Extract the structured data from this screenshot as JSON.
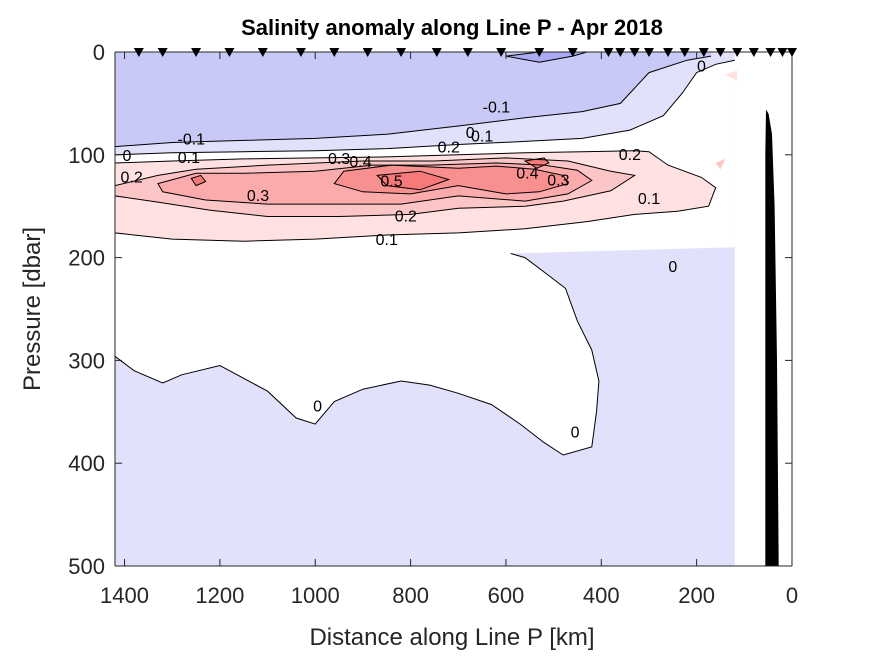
{
  "chart_data": {
    "type": "heatmap",
    "subtype": "filled-contour-section",
    "title": "Salinity anomaly along Line P - Apr 2018",
    "xlabel": "Distance along Line P [km]",
    "ylabel": "Pressure [dbar]",
    "xlim": [
      1420,
      0
    ],
    "ylim": [
      0,
      500
    ],
    "x_reversed": true,
    "y_reversed": true,
    "xticks": [
      1400,
      1200,
      1000,
      800,
      600,
      400,
      200,
      0
    ],
    "yticks": [
      0,
      100,
      200,
      300,
      400,
      500
    ],
    "grid": false,
    "station_markers_km": [
      1370,
      1320,
      1250,
      1180,
      1110,
      1030,
      960,
      890,
      820,
      745,
      680,
      610,
      530,
      460,
      385,
      360,
      330,
      300,
      260,
      225,
      185,
      150,
      115,
      80,
      45,
      20,
      0
    ],
    "contour_levels": [
      -0.2,
      -0.1,
      0,
      0.1,
      0.2,
      0.3,
      0.4,
      0.5
    ],
    "fill_colors": {
      "-0.2": "#ababf5",
      "-0.1": "#c9c9f7",
      "0": "#e1e1fb",
      "0.0+": "#ffffff",
      "0.1": "#ffe1e1",
      "0.2": "#fdc6c6",
      "0.3": "#fbabab",
      "0.4": "#f99090",
      "0.5": "#f77a7a"
    },
    "bathymetry_color": "#000000",
    "contours": [
      {
        "level": -0.2,
        "points": [
          [
            530,
            0
          ],
          [
            600,
            4
          ],
          [
            530,
            10
          ],
          [
            460,
            4
          ],
          [
            430,
            0
          ]
        ]
      },
      {
        "level": -0.1,
        "points": [
          [
            1420,
            92
          ],
          [
            1300,
            88
          ],
          [
            1150,
            86
          ],
          [
            1000,
            84
          ],
          [
            850,
            80
          ],
          [
            700,
            72
          ],
          [
            560,
            64
          ],
          [
            440,
            58
          ],
          [
            360,
            50
          ],
          [
            300,
            20
          ],
          [
            220,
            8
          ],
          [
            170,
            4
          ]
        ]
      },
      {
        "level": 0,
        "points": [
          [
            1420,
            100
          ],
          [
            1300,
            98
          ],
          [
            1150,
            97
          ],
          [
            1000,
            96
          ],
          [
            850,
            94
          ],
          [
            700,
            90
          ],
          [
            560,
            87
          ],
          [
            440,
            84
          ],
          [
            340,
            76
          ],
          [
            270,
            62
          ],
          [
            230,
            40
          ],
          [
            200,
            20
          ],
          [
            160,
            12
          ],
          [
            120,
            8
          ]
        ]
      },
      {
        "level": 0.1,
        "points": [
          [
            1420,
            108
          ],
          [
            1300,
            106
          ],
          [
            1150,
            104
          ],
          [
            1000,
            103
          ],
          [
            850,
            102
          ],
          [
            700,
            100
          ],
          [
            560,
            98
          ],
          [
            440,
            97
          ],
          [
            330,
            96
          ],
          [
            300,
            97
          ],
          [
            260,
            110
          ],
          [
            190,
            122
          ],
          [
            160,
            132
          ],
          [
            175,
            150
          ],
          [
            240,
            155
          ],
          [
            330,
            158
          ],
          [
            430,
            165
          ],
          [
            560,
            172
          ],
          [
            700,
            176
          ],
          [
            850,
            178
          ],
          [
            1000,
            182
          ],
          [
            1150,
            184
          ],
          [
            1300,
            182
          ],
          [
            1420,
            176
          ]
        ]
      },
      {
        "level": 0.2,
        "points": [
          [
            1420,
            130
          ],
          [
            1330,
            120
          ],
          [
            1250,
            114
          ],
          [
            1100,
            110
          ],
          [
            900,
            106
          ],
          [
            750,
            106
          ],
          [
            600,
            103
          ],
          [
            470,
            106
          ],
          [
            380,
            116
          ],
          [
            330,
            120
          ],
          [
            380,
            135
          ],
          [
            480,
            145
          ],
          [
            560,
            150
          ],
          [
            700,
            152
          ],
          [
            800,
            158
          ],
          [
            950,
            160
          ],
          [
            1100,
            160
          ],
          [
            1220,
            154
          ],
          [
            1330,
            146
          ],
          [
            1420,
            140
          ]
        ]
      },
      {
        "level": 0.3,
        "points": [
          [
            1330,
            128
          ],
          [
            1250,
            118
          ],
          [
            1150,
            118
          ],
          [
            1000,
            116
          ],
          [
            880,
            110
          ],
          [
            760,
            110
          ],
          [
            620,
            108
          ],
          [
            520,
            110
          ],
          [
            450,
            115
          ],
          [
            420,
            125
          ],
          [
            470,
            138
          ],
          [
            560,
            145
          ],
          [
            700,
            140
          ],
          [
            820,
            148
          ],
          [
            960,
            148
          ],
          [
            1100,
            148
          ],
          [
            1230,
            144
          ],
          [
            1320,
            136
          ]
        ]
      },
      {
        "level": 0.4,
        "points": [
          [
            940,
            116
          ],
          [
            840,
            110
          ],
          [
            700,
            113
          ],
          [
            620,
            111
          ],
          [
            540,
            114
          ],
          [
            480,
            120
          ],
          [
            470,
            128
          ],
          [
            530,
            136
          ],
          [
            600,
            138
          ],
          [
            700,
            130
          ],
          [
            800,
            138
          ],
          [
            900,
            136
          ],
          [
            960,
            128
          ]
        ]
      },
      {
        "level": 0.5,
        "points": [
          [
            870,
            120
          ],
          [
            780,
            116
          ],
          [
            720,
            124
          ],
          [
            780,
            134
          ],
          [
            850,
            130
          ]
        ]
      },
      {
        "level": 0.5,
        "points": [
          [
            1260,
            123
          ],
          [
            1240,
            120
          ],
          [
            1230,
            126
          ],
          [
            1250,
            130
          ]
        ]
      },
      {
        "level": 0.5,
        "points": [
          [
            560,
            106
          ],
          [
            520,
            103
          ],
          [
            510,
            108
          ],
          [
            535,
            113
          ]
        ]
      },
      {
        "level": 0,
        "points": [
          [
            1420,
            296
          ],
          [
            1380,
            310
          ],
          [
            1320,
            322
          ],
          [
            1280,
            314
          ],
          [
            1200,
            305
          ],
          [
            1100,
            330
          ],
          [
            1040,
            356
          ],
          [
            1000,
            362
          ],
          [
            960,
            340
          ],
          [
            900,
            328
          ],
          [
            820,
            320
          ],
          [
            760,
            324
          ],
          [
            700,
            332
          ],
          [
            630,
            343
          ],
          [
            570,
            362
          ],
          [
            520,
            380
          ],
          [
            480,
            392
          ],
          [
            420,
            384
          ],
          [
            410,
            350
          ],
          [
            405,
            320
          ],
          [
            420,
            290
          ],
          [
            450,
            262
          ],
          [
            475,
            230
          ],
          [
            520,
            214
          ],
          [
            560,
            200
          ],
          [
            590,
            196
          ]
        ]
      }
    ],
    "contour_labels": [
      {
        "text": "-0.1",
        "km": 1260,
        "dbar": 85
      },
      {
        "text": "0",
        "km": 1395,
        "dbar": 101
      },
      {
        "text": "0.1",
        "km": 1265,
        "dbar": 103
      },
      {
        "text": "0.2",
        "km": 1385,
        "dbar": 122
      },
      {
        "text": "0.3",
        "km": 1120,
        "dbar": 140
      },
      {
        "text": "0.3",
        "km": 950,
        "dbar": 104
      },
      {
        "text": "0.4",
        "km": 905,
        "dbar": 107
      },
      {
        "text": "0.5",
        "km": 840,
        "dbar": 126
      },
      {
        "text": "0.2",
        "km": 810,
        "dbar": 160
      },
      {
        "text": "0.1",
        "km": 850,
        "dbar": 183
      },
      {
        "text": "-0.1",
        "km": 620,
        "dbar": 54
      },
      {
        "text": "0",
        "km": 675,
        "dbar": 79
      },
      {
        "text": "0.1",
        "km": 650,
        "dbar": 82
      },
      {
        "text": "0.2",
        "km": 720,
        "dbar": 93
      },
      {
        "text": "0.4",
        "km": 555,
        "dbar": 118
      },
      {
        "text": "0.3",
        "km": 490,
        "dbar": 125
      },
      {
        "text": "0.2",
        "km": 340,
        "dbar": 100
      },
      {
        "text": "0.1",
        "km": 300,
        "dbar": 143
      },
      {
        "text": "0",
        "km": 190,
        "dbar": 14
      },
      {
        "text": "0",
        "km": 250,
        "dbar": 209
      },
      {
        "text": "0",
        "km": 995,
        "dbar": 345
      },
      {
        "text": "0",
        "km": 455,
        "dbar": 370
      }
    ]
  }
}
